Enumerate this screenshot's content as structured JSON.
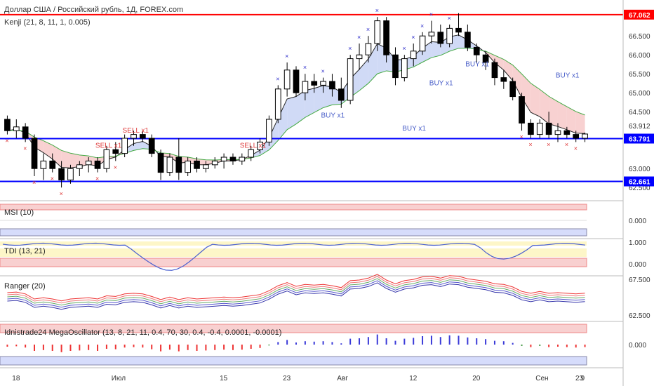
{
  "header": {
    "title": "Доллар США / Российский рубль, 1Д, FOREX.com",
    "indicator": "Kenji (21, 8, 11, 1, 0.005)"
  },
  "colors": {
    "up_candle": "#ffffff",
    "down_candle": "#000000",
    "red_line": "#ff0000",
    "blue_line": "#0000ff",
    "price_badge": "#0000ff"
  },
  "chart_data": {
    "type": "candlestick",
    "price_labels": {
      "resistance": "67.062",
      "last": "63.912",
      "support_top": "63.791",
      "support_bottom": "62.661"
    },
    "y_ticks_main": [
      "66.500",
      "66.000",
      "65.500",
      "65.000",
      "64.500",
      "63.000",
      "62.500"
    ],
    "x_ticks": [
      "18",
      "Июл",
      "15",
      "23",
      "Авг",
      "12",
      "20",
      "Сен",
      "9",
      "23"
    ],
    "levels": {
      "resistance": 67.062,
      "mid": 63.791,
      "support": 62.661
    },
    "ylim": [
      62.3,
      67.3
    ],
    "signals": {
      "sell": [
        {
          "label": "SELL x1"
        },
        {
          "label": "SELL x1"
        },
        {
          "label": "SELL x1"
        }
      ],
      "buy": [
        {
          "label": "BUY x1"
        },
        {
          "label": "BUY x1"
        },
        {
          "label": "BUY x1"
        },
        {
          "label": "BUY x1"
        },
        {
          "label": "BUY x1"
        }
      ]
    },
    "candles": [
      {
        "o": 64.3,
        "h": 64.4,
        "l": 63.9,
        "c": 64.0
      },
      {
        "o": 64.0,
        "h": 64.3,
        "l": 63.8,
        "c": 64.1
      },
      {
        "o": 64.1,
        "h": 64.2,
        "l": 63.7,
        "c": 63.8
      },
      {
        "o": 63.8,
        "h": 63.9,
        "l": 62.8,
        "c": 63.0
      },
      {
        "o": 63.0,
        "h": 63.4,
        "l": 62.7,
        "c": 63.2
      },
      {
        "o": 63.2,
        "h": 63.4,
        "l": 62.9,
        "c": 63.0
      },
      {
        "o": 63.0,
        "h": 63.2,
        "l": 62.5,
        "c": 62.7
      },
      {
        "o": 62.7,
        "h": 63.1,
        "l": 62.6,
        "c": 63.0
      },
      {
        "o": 63.0,
        "h": 63.2,
        "l": 62.8,
        "c": 63.1
      },
      {
        "o": 63.1,
        "h": 63.3,
        "l": 62.9,
        "c": 63.2
      },
      {
        "o": 63.2,
        "h": 63.3,
        "l": 62.9,
        "c": 63.0
      },
      {
        "o": 63.0,
        "h": 63.6,
        "l": 62.9,
        "c": 63.5
      },
      {
        "o": 63.5,
        "h": 63.7,
        "l": 63.2,
        "c": 63.4
      },
      {
        "o": 63.4,
        "h": 63.9,
        "l": 63.3,
        "c": 63.8
      },
      {
        "o": 63.8,
        "h": 64.0,
        "l": 63.6,
        "c": 63.9
      },
      {
        "o": 63.9,
        "h": 64.0,
        "l": 63.7,
        "c": 63.8
      },
      {
        "o": 63.8,
        "h": 63.9,
        "l": 63.3,
        "c": 63.4
      },
      {
        "o": 63.4,
        "h": 63.5,
        "l": 62.7,
        "c": 62.9
      },
      {
        "o": 62.9,
        "h": 63.4,
        "l": 62.8,
        "c": 63.3
      },
      {
        "o": 63.3,
        "h": 63.8,
        "l": 62.7,
        "c": 62.9
      },
      {
        "o": 62.9,
        "h": 63.3,
        "l": 62.8,
        "c": 63.2
      },
      {
        "o": 63.2,
        "h": 63.3,
        "l": 62.9,
        "c": 63.0
      },
      {
        "o": 63.0,
        "h": 63.2,
        "l": 62.9,
        "c": 63.1
      },
      {
        "o": 63.1,
        "h": 63.3,
        "l": 63.0,
        "c": 63.2
      },
      {
        "o": 63.2,
        "h": 63.4,
        "l": 63.0,
        "c": 63.3
      },
      {
        "o": 63.3,
        "h": 63.4,
        "l": 63.1,
        "c": 63.2
      },
      {
        "o": 63.2,
        "h": 63.4,
        "l": 63.1,
        "c": 63.3
      },
      {
        "o": 63.3,
        "h": 63.6,
        "l": 63.2,
        "c": 63.5
      },
      {
        "o": 63.5,
        "h": 63.8,
        "l": 63.4,
        "c": 63.7
      },
      {
        "o": 63.7,
        "h": 64.4,
        "l": 63.6,
        "c": 64.3
      },
      {
        "o": 64.3,
        "h": 65.2,
        "l": 64.2,
        "c": 65.1
      },
      {
        "o": 65.1,
        "h": 65.8,
        "l": 64.9,
        "c": 65.6
      },
      {
        "o": 65.6,
        "h": 65.7,
        "l": 64.9,
        "c": 65.0
      },
      {
        "o": 65.0,
        "h": 65.5,
        "l": 64.8,
        "c": 65.3
      },
      {
        "o": 65.3,
        "h": 65.5,
        "l": 65.0,
        "c": 65.2
      },
      {
        "o": 65.2,
        "h": 65.4,
        "l": 65.0,
        "c": 65.3
      },
      {
        "o": 65.3,
        "h": 65.5,
        "l": 64.9,
        "c": 65.1
      },
      {
        "o": 65.1,
        "h": 65.4,
        "l": 64.6,
        "c": 64.8
      },
      {
        "o": 64.8,
        "h": 66.0,
        "l": 64.7,
        "c": 65.9
      },
      {
        "o": 65.9,
        "h": 66.3,
        "l": 65.6,
        "c": 66.0
      },
      {
        "o": 66.0,
        "h": 66.5,
        "l": 65.8,
        "c": 66.3
      },
      {
        "o": 66.3,
        "h": 67.0,
        "l": 66.1,
        "c": 66.9
      },
      {
        "o": 66.9,
        "h": 67.0,
        "l": 65.8,
        "c": 66.0
      },
      {
        "o": 66.0,
        "h": 66.2,
        "l": 65.2,
        "c": 65.4
      },
      {
        "o": 65.4,
        "h": 66.0,
        "l": 65.3,
        "c": 65.9
      },
      {
        "o": 65.9,
        "h": 66.3,
        "l": 65.7,
        "c": 66.1
      },
      {
        "o": 66.1,
        "h": 66.6,
        "l": 66.0,
        "c": 66.5
      },
      {
        "o": 66.5,
        "h": 66.9,
        "l": 66.3,
        "c": 66.6
      },
      {
        "o": 66.6,
        "h": 66.8,
        "l": 66.2,
        "c": 66.3
      },
      {
        "o": 66.3,
        "h": 66.8,
        "l": 66.2,
        "c": 66.7
      },
      {
        "o": 66.7,
        "h": 67.1,
        "l": 66.5,
        "c": 66.6
      },
      {
        "o": 66.6,
        "h": 66.8,
        "l": 66.1,
        "c": 66.2
      },
      {
        "o": 66.2,
        "h": 66.3,
        "l": 65.8,
        "c": 66.0
      },
      {
        "o": 66.0,
        "h": 66.1,
        "l": 65.6,
        "c": 65.8
      },
      {
        "o": 65.8,
        "h": 65.9,
        "l": 65.2,
        "c": 65.4
      },
      {
        "o": 65.4,
        "h": 65.6,
        "l": 65.1,
        "c": 65.3
      },
      {
        "o": 65.3,
        "h": 65.4,
        "l": 64.8,
        "c": 64.9
      },
      {
        "o": 64.9,
        "h": 65.0,
        "l": 64.0,
        "c": 64.2
      },
      {
        "o": 64.2,
        "h": 64.3,
        "l": 63.8,
        "c": 63.9
      },
      {
        "o": 63.9,
        "h": 64.3,
        "l": 63.8,
        "c": 64.2
      },
      {
        "o": 64.2,
        "h": 64.5,
        "l": 63.8,
        "c": 63.9
      },
      {
        "o": 63.9,
        "h": 64.2,
        "l": 63.7,
        "c": 64.0
      },
      {
        "o": 64.0,
        "h": 64.1,
        "l": 63.8,
        "c": 63.9
      },
      {
        "o": 63.9,
        "h": 64.0,
        "l": 63.7,
        "c": 63.8
      },
      {
        "o": 63.8,
        "h": 63.95,
        "l": 63.7,
        "c": 63.912
      }
    ]
  },
  "panes": {
    "msi": {
      "title": "MSI (10)",
      "ticks": [
        "0.000"
      ]
    },
    "tdi": {
      "title": "TDI (13, 21)",
      "ticks": [
        "1.000",
        "0.000"
      ]
    },
    "ranger": {
      "title": "Ranger (20)",
      "ticks": [
        "67.500",
        "62.500"
      ]
    },
    "mega": {
      "title": "Idnistrade24 MegaOscillator (13, 8, 21, 11, 0.4, 70, 30, 0.4, -0.4, 0.0001, -0.0001)",
      "ticks": [
        "0.000"
      ]
    }
  }
}
